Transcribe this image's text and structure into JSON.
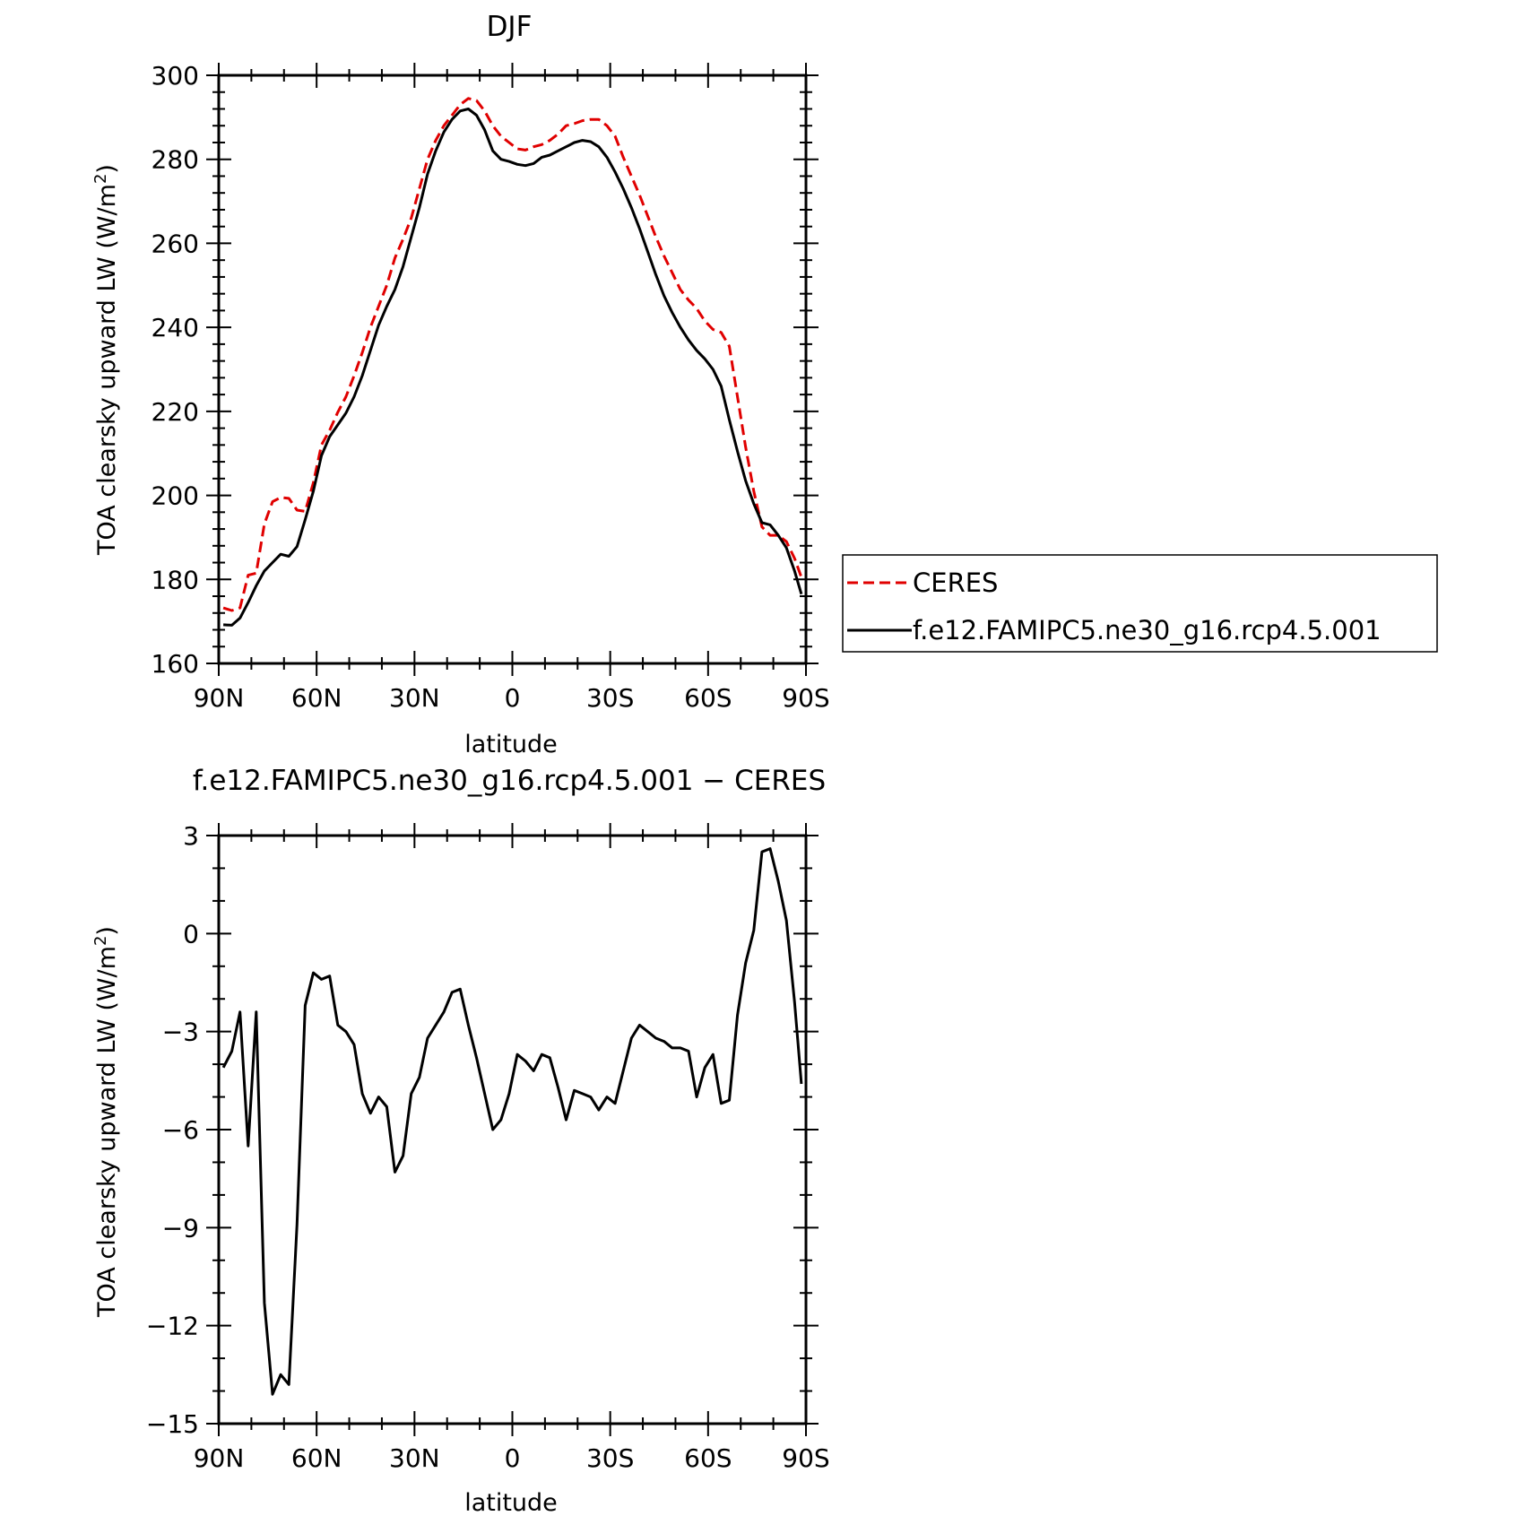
{
  "figure": {
    "panels": [
      {
        "title": "DJF",
        "ylabel_main": "TOA clearsky upward LW (W/m",
        "ylabel_sup": "2",
        "ylabel_end": ")",
        "xlabel": "latitude",
        "yticks": [
          "160",
          "180",
          "200",
          "220",
          "240",
          "260",
          "280",
          "300"
        ],
        "xticks": [
          "90N",
          "60N",
          "30N",
          "0",
          "30S",
          "60S",
          "90S"
        ],
        "legend": {
          "entries": [
            {
              "label": "CERES",
              "color": "#e00000",
              "dash": "dashed"
            },
            {
              "label": "f.e12.FAMIPC5.ne30_g16.rcp4.5.001",
              "color": "#000000",
              "dash": "solid"
            }
          ]
        }
      },
      {
        "title": "f.e12.FAMIPC5.ne30_g16.rcp4.5.001 − CERES",
        "ylabel_main": "TOA clearsky upward LW (W/m",
        "ylabel_sup": "2",
        "ylabel_end": ")",
        "xlabel": "latitude",
        "yticks": [
          "3",
          "0",
          "−3",
          "−6",
          "−9",
          "−12",
          "−15"
        ],
        "xticks": [
          "90N",
          "60N",
          "30N",
          "0",
          "30S",
          "60S",
          "90S"
        ]
      }
    ]
  },
  "chart_data": [
    {
      "type": "line",
      "title": "DJF",
      "xlabel": "latitude",
      "ylabel": "TOA clearsky upward LW (W/m2)",
      "x_direction": "90N to 90S",
      "xlim": [
        90,
        -90
      ],
      "ylim": [
        160,
        300
      ],
      "legend_position": "right",
      "x": [
        88.6,
        86,
        83.5,
        81,
        78.5,
        76,
        73.5,
        71,
        68.5,
        66,
        63.5,
        61,
        58.5,
        56,
        53.5,
        51,
        48.5,
        46,
        43.5,
        41,
        38.5,
        36,
        33.5,
        31,
        28.5,
        26,
        23.5,
        21,
        18.5,
        16,
        13.5,
        11,
        8.5,
        6,
        3.5,
        1,
        -1.5,
        -4,
        -6.5,
        -9,
        -11.5,
        -14,
        -16.5,
        -19,
        -21.5,
        -24,
        -26.5,
        -29,
        -31.5,
        -34,
        -36.5,
        -39,
        -41.5,
        -44,
        -46.5,
        -49,
        -51.5,
        -54,
        -56.5,
        -59,
        -61.5,
        -64,
        -66.5,
        -69,
        -71.5,
        -74,
        -76.5,
        -79,
        -81.5,
        -84,
        -86.5,
        -88.6
      ],
      "series": [
        {
          "name": "CERES",
          "color": "#e00000",
          "dash": "dashed",
          "values": [
            173.2,
            172.6,
            173.2,
            181,
            181.5,
            193.2,
            198.5,
            199.5,
            199.3,
            196.5,
            196.2,
            203,
            212,
            215.5,
            219.8,
            223.5,
            228.5,
            234,
            240,
            245,
            250,
            256.5,
            261,
            266,
            273,
            280,
            284.5,
            288,
            290.5,
            293,
            294.5,
            294,
            291.5,
            288,
            285.5,
            284,
            282.5,
            282.2,
            283,
            283.5,
            284.5,
            286,
            288,
            288.5,
            289.2,
            289.5,
            289.5,
            288,
            285.5,
            280.5,
            276,
            271.5,
            266.5,
            261.5,
            257,
            253,
            249,
            246.5,
            244.5,
            241.5,
            239.5,
            238.8,
            235.5,
            223.5,
            211.5,
            201,
            192.5,
            190.5,
            190.5,
            189,
            185,
            180.5
          ]
        },
        {
          "name": "f.e12.FAMIPC5.ne30_g16.rcp4.5.001",
          "color": "#000000",
          "dash": "solid",
          "values": [
            169.2,
            169.1,
            170.8,
            174.5,
            178.5,
            182,
            184,
            186,
            185.5,
            187.8,
            194.2,
            201,
            209.5,
            214,
            216.8,
            219.6,
            223.5,
            228.5,
            234.5,
            240.5,
            245,
            249,
            254.5,
            261.5,
            268.5,
            276.5,
            282,
            286.5,
            289.5,
            291.5,
            292,
            290.5,
            287,
            282,
            280,
            279.5,
            278.8,
            278.5,
            279,
            280.5,
            281,
            282,
            283,
            284,
            284.5,
            284.2,
            283,
            280.5,
            277,
            273,
            268.5,
            263.5,
            258,
            252.5,
            247.5,
            243.5,
            240,
            237,
            234.5,
            232.5,
            230,
            226,
            218,
            210.5,
            203.5,
            198,
            193.5,
            193,
            190.5,
            187.5,
            182,
            176.5
          ]
        }
      ]
    },
    {
      "type": "line",
      "title": "f.e12.FAMIPC5.ne30_g16.rcp4.5.001 − CERES",
      "xlabel": "latitude",
      "ylabel": "TOA clearsky upward LW (W/m2)",
      "x_direction": "90N to 90S",
      "xlim": [
        90,
        -90
      ],
      "ylim": [
        -15,
        3
      ],
      "x": [
        88.6,
        86,
        83.5,
        81,
        78.5,
        76,
        73.5,
        71,
        68.5,
        66,
        63.5,
        61,
        58.5,
        56,
        53.5,
        51,
        48.5,
        46,
        43.5,
        41,
        38.5,
        36,
        33.5,
        31,
        28.5,
        26,
        23.5,
        21,
        18.5,
        16,
        13.5,
        11,
        8.5,
        6,
        3.5,
        1,
        -1.5,
        -4,
        -6.5,
        -9,
        -11.5,
        -14,
        -16.5,
        -19,
        -21.5,
        -24,
        -26.5,
        -29,
        -31.5,
        -34,
        -36.5,
        -39,
        -41.5,
        -44,
        -46.5,
        -49,
        -51.5,
        -54,
        -56.5,
        -59,
        -61.5,
        -64,
        -66.5,
        -69,
        -71.5,
        -74,
        -76.5,
        -79,
        -81.5,
        -84,
        -86.5,
        -88.6
      ],
      "series": [
        {
          "color": "#000000",
          "dash": "solid",
          "values": [
            -4.1,
            -3.6,
            -2.4,
            -6.5,
            -2.4,
            -11.3,
            -14.1,
            -13.5,
            -13.8,
            -8.9,
            -2.2,
            -1.2,
            -1.4,
            -1.3,
            -2.8,
            -3,
            -3.4,
            -4.9,
            -5.5,
            -5,
            -5.3,
            -7.3,
            -6.8,
            -4.9,
            -4.4,
            -3.2,
            -2.8,
            -2.4,
            -1.8,
            -1.7,
            -2.8,
            -3.8,
            -4.9,
            -6,
            -5.7,
            -4.9,
            -3.7,
            -3.9,
            -4.2,
            -3.7,
            -3.8,
            -4.7,
            -5.7,
            -4.8,
            -4.9,
            -5,
            -5.4,
            -5,
            -5.2,
            -4.2,
            -3.2,
            -2.8,
            -3,
            -3.2,
            -3.3,
            -3.5,
            -3.5,
            -3.6,
            -5,
            -4.1,
            -3.7,
            -5.2,
            -5.1,
            -2.5,
            -0.9,
            0.1,
            2.5,
            2.6,
            1.6,
            0.4,
            -2.1,
            -4.6
          ]
        }
      ]
    }
  ]
}
